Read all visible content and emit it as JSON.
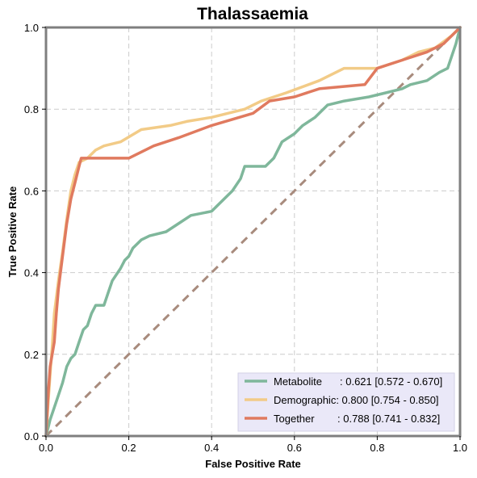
{
  "chart_data": {
    "type": "line",
    "title": "Thalassaemia",
    "xlabel": "False Positive Rate",
    "ylabel": "True Positive Rate",
    "xlim": [
      0,
      1
    ],
    "ylim": [
      0,
      1
    ],
    "xticks": [
      "0.0",
      "0.2",
      "0.4",
      "0.6",
      "0.8",
      "1.0"
    ],
    "yticks": [
      "0.0",
      "0.2",
      "0.4",
      "0.6",
      "0.8",
      "1.0"
    ],
    "grid": true,
    "legend_position": "lower-right",
    "series": [
      {
        "name": "Metabolite",
        "label_suffix": ": 0.621 [0.572 - 0.670]",
        "color": "#7fb79b",
        "points": [
          [
            0.0,
            0.0
          ],
          [
            0.005,
            0.02
          ],
          [
            0.01,
            0.04
          ],
          [
            0.02,
            0.07
          ],
          [
            0.03,
            0.1
          ],
          [
            0.04,
            0.13
          ],
          [
            0.05,
            0.17
          ],
          [
            0.06,
            0.19
          ],
          [
            0.07,
            0.2
          ],
          [
            0.08,
            0.23
          ],
          [
            0.09,
            0.26
          ],
          [
            0.1,
            0.27
          ],
          [
            0.11,
            0.3
          ],
          [
            0.12,
            0.32
          ],
          [
            0.14,
            0.32
          ],
          [
            0.15,
            0.35
          ],
          [
            0.16,
            0.38
          ],
          [
            0.18,
            0.41
          ],
          [
            0.19,
            0.43
          ],
          [
            0.2,
            0.44
          ],
          [
            0.21,
            0.46
          ],
          [
            0.23,
            0.48
          ],
          [
            0.25,
            0.49
          ],
          [
            0.29,
            0.5
          ],
          [
            0.32,
            0.52
          ],
          [
            0.35,
            0.54
          ],
          [
            0.4,
            0.55
          ],
          [
            0.41,
            0.56
          ],
          [
            0.43,
            0.58
          ],
          [
            0.45,
            0.6
          ],
          [
            0.47,
            0.63
          ],
          [
            0.48,
            0.66
          ],
          [
            0.53,
            0.66
          ],
          [
            0.55,
            0.68
          ],
          [
            0.57,
            0.72
          ],
          [
            0.6,
            0.74
          ],
          [
            0.62,
            0.76
          ],
          [
            0.65,
            0.78
          ],
          [
            0.68,
            0.81
          ],
          [
            0.72,
            0.82
          ],
          [
            0.78,
            0.83
          ],
          [
            0.82,
            0.84
          ],
          [
            0.86,
            0.85
          ],
          [
            0.88,
            0.86
          ],
          [
            0.92,
            0.87
          ],
          [
            0.95,
            0.89
          ],
          [
            0.97,
            0.9
          ],
          [
            0.99,
            0.96
          ],
          [
            1.0,
            1.0
          ]
        ]
      },
      {
        "name": "Demographic",
        "label_suffix": ": 0.800 [0.754 - 0.850]",
        "color": "#f2cb87",
        "points": [
          [
            0.0,
            0.0
          ],
          [
            0.005,
            0.08
          ],
          [
            0.01,
            0.15
          ],
          [
            0.015,
            0.22
          ],
          [
            0.02,
            0.3
          ],
          [
            0.03,
            0.38
          ],
          [
            0.04,
            0.45
          ],
          [
            0.05,
            0.53
          ],
          [
            0.06,
            0.6
          ],
          [
            0.07,
            0.64
          ],
          [
            0.08,
            0.67
          ],
          [
            0.1,
            0.68
          ],
          [
            0.12,
            0.7
          ],
          [
            0.14,
            0.71
          ],
          [
            0.18,
            0.72
          ],
          [
            0.23,
            0.75
          ],
          [
            0.3,
            0.76
          ],
          [
            0.34,
            0.77
          ],
          [
            0.4,
            0.78
          ],
          [
            0.48,
            0.8
          ],
          [
            0.52,
            0.82
          ],
          [
            0.58,
            0.84
          ],
          [
            0.66,
            0.87
          ],
          [
            0.72,
            0.9
          ],
          [
            0.8,
            0.9
          ],
          [
            0.86,
            0.92
          ],
          [
            0.9,
            0.94
          ],
          [
            0.94,
            0.95
          ],
          [
            0.98,
            0.98
          ],
          [
            1.0,
            1.0
          ]
        ]
      },
      {
        "name": "Together",
        "label_suffix": "   : 0.788 [0.741 - 0.832]",
        "color": "#e07a5f",
        "points": [
          [
            0.0,
            0.0
          ],
          [
            0.005,
            0.1
          ],
          [
            0.01,
            0.17
          ],
          [
            0.02,
            0.23
          ],
          [
            0.025,
            0.3
          ],
          [
            0.03,
            0.36
          ],
          [
            0.04,
            0.44
          ],
          [
            0.05,
            0.52
          ],
          [
            0.06,
            0.58
          ],
          [
            0.07,
            0.62
          ],
          [
            0.08,
            0.66
          ],
          [
            0.085,
            0.68
          ],
          [
            0.1,
            0.68
          ],
          [
            0.2,
            0.68
          ],
          [
            0.26,
            0.71
          ],
          [
            0.32,
            0.73
          ],
          [
            0.4,
            0.76
          ],
          [
            0.5,
            0.79
          ],
          [
            0.54,
            0.82
          ],
          [
            0.6,
            0.83
          ],
          [
            0.66,
            0.85
          ],
          [
            0.77,
            0.86
          ],
          [
            0.8,
            0.9
          ],
          [
            0.86,
            0.92
          ],
          [
            0.92,
            0.94
          ],
          [
            0.96,
            0.96
          ],
          [
            0.99,
            0.99
          ],
          [
            1.0,
            1.0
          ]
        ]
      },
      {
        "name": "",
        "color": "#a88b7d",
        "dashed": true,
        "points": [
          [
            0.0,
            0.0
          ],
          [
            1.0,
            1.0
          ]
        ]
      }
    ]
  }
}
